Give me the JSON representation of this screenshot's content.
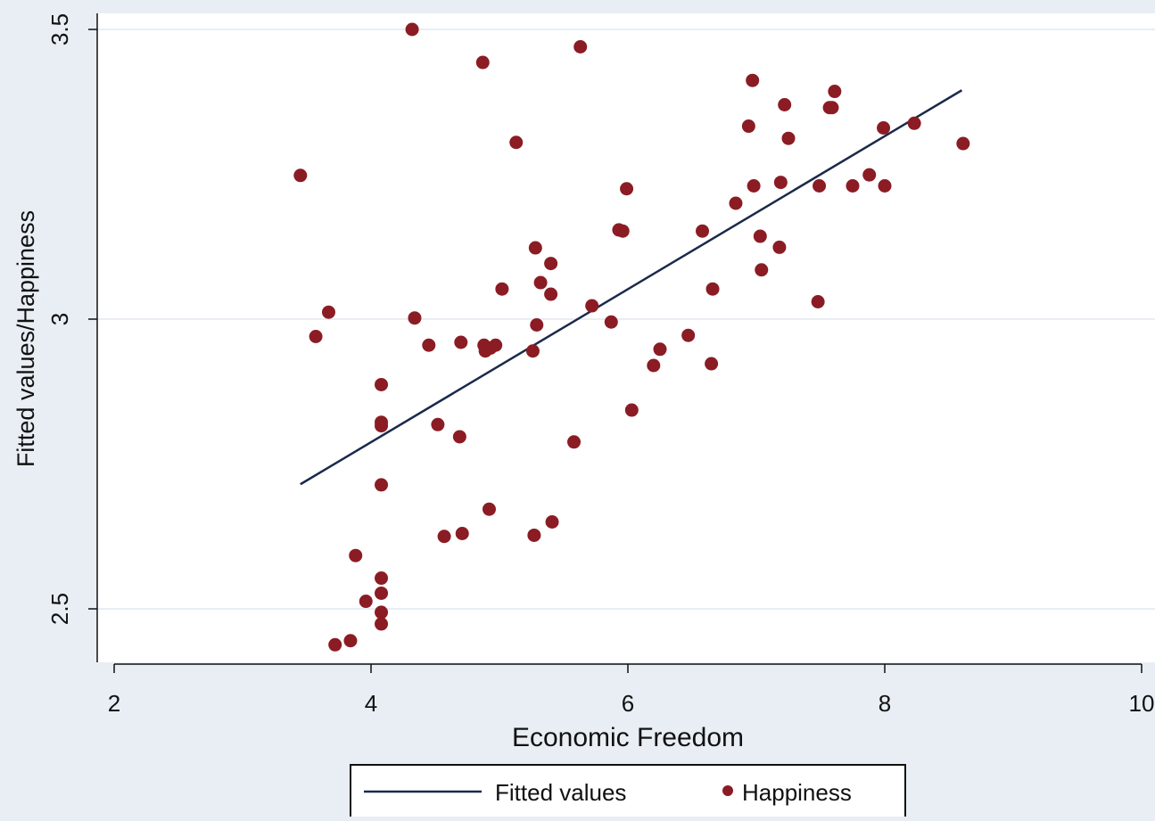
{
  "chart_data": {
    "type": "scatter",
    "title": "",
    "xlabel": "Economic Freedom",
    "ylabel": "Fitted values/Happiness",
    "xlim": [
      2,
      10
    ],
    "ylim": [
      2.43,
      3.5
    ],
    "xticks": [
      2,
      4,
      6,
      8,
      10
    ],
    "xtick_labels": [
      "2",
      "4",
      "6",
      "8",
      "10"
    ],
    "yticks": [
      2.5,
      3,
      3.5
    ],
    "ytick_labels": [
      "2.5",
      "3",
      "3.5"
    ],
    "grid": "horizontal",
    "legend_position": "bottom",
    "colors": {
      "plot_background": "#ffffff",
      "outer_background": "#e8eef4",
      "gridline": "#e8eef4",
      "fitted_line": "#1a2a4a",
      "points": "#8b1c24"
    },
    "series": [
      {
        "name": "Fitted values",
        "type": "line",
        "x": [
          3.45,
          8.6
        ],
        "y": [
          2.715,
          3.395
        ]
      },
      {
        "name": "Happiness",
        "type": "scatter",
        "x": [
          3.45,
          3.57,
          3.67,
          3.72,
          3.84,
          3.88,
          3.96,
          4.08,
          4.08,
          4.08,
          4.08,
          4.08,
          4.08,
          4.08,
          4.08,
          4.32,
          4.34,
          4.45,
          4.52,
          4.57,
          4.69,
          4.7,
          4.71,
          4.87,
          4.88,
          4.89,
          4.92,
          4.93,
          4.97,
          5.02,
          5.13,
          5.26,
          5.27,
          5.28,
          5.29,
          5.32,
          5.4,
          5.4,
          5.41,
          5.58,
          5.63,
          5.72,
          5.87,
          5.93,
          5.96,
          5.99,
          6.03,
          6.2,
          6.25,
          6.47,
          6.58,
          6.65,
          6.66,
          6.84,
          6.94,
          6.97,
          6.98,
          7.03,
          7.04,
          7.18,
          7.19,
          7.22,
          7.25,
          7.48,
          7.49,
          7.57,
          7.59,
          7.61,
          7.75,
          7.88,
          7.99,
          8.0,
          8.23,
          8.61
        ],
        "y": [
          3.248,
          2.97,
          3.012,
          2.438,
          2.445,
          2.592,
          2.513,
          2.887,
          2.822,
          2.816,
          2.714,
          2.553,
          2.527,
          2.494,
          2.474,
          3.5,
          3.002,
          2.955,
          2.818,
          2.625,
          2.797,
          2.96,
          2.63,
          3.443,
          2.955,
          2.945,
          2.672,
          2.95,
          2.955,
          3.052,
          3.305,
          2.945,
          2.627,
          3.123,
          2.99,
          3.063,
          3.096,
          3.043,
          2.65,
          2.788,
          3.47,
          3.023,
          2.995,
          3.154,
          3.152,
          3.225,
          2.843,
          2.92,
          2.948,
          2.972,
          3.152,
          2.923,
          3.052,
          3.2,
          3.333,
          3.412,
          3.23,
          3.143,
          3.085,
          3.124,
          3.236,
          3.37,
          3.312,
          3.03,
          3.23,
          3.365,
          3.365,
          3.393,
          3.23,
          3.249,
          3.33,
          3.23,
          3.338,
          3.303
        ]
      }
    ],
    "legend": {
      "entries": [
        "Fitted values",
        "Happiness"
      ]
    }
  }
}
